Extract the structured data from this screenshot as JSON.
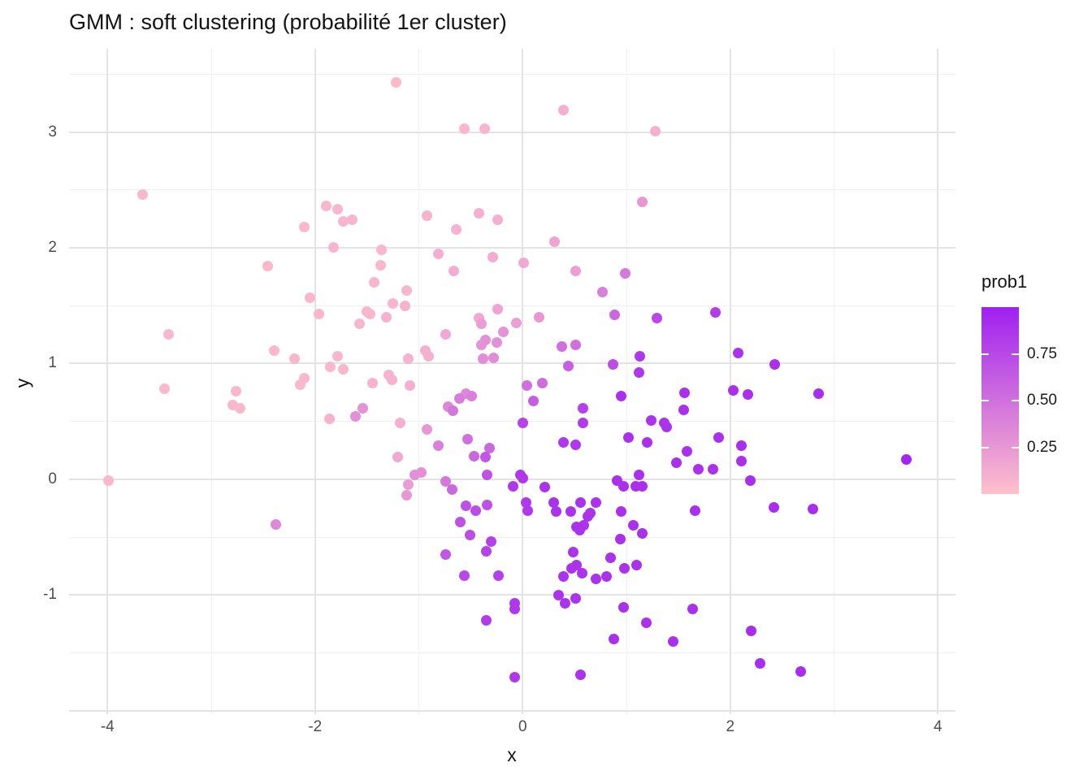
{
  "chart_data": {
    "type": "scatter",
    "title": "GMM : soft clustering (probabilité 1er cluster)",
    "xlabel": "x",
    "ylabel": "y",
    "xlim": [
      -4.37,
      4.17
    ],
    "ylim": [
      -2.03,
      3.72
    ],
    "grid": true,
    "x_major_ticks": [
      -4,
      -2,
      0,
      2,
      4
    ],
    "x_tick_labels": [
      "-4",
      "-2",
      "0",
      "2",
      "4"
    ],
    "x_minor_ticks": [
      -3,
      -1,
      1,
      3
    ],
    "y_major_ticks": [
      3,
      2,
      1,
      0,
      -1,
      -2
    ],
    "y_tick_labels": [
      "3",
      "2",
      "1",
      "0",
      "-1",
      ""
    ],
    "y_minor_ticks": [
      3.5,
      2.5,
      1.5,
      0.5,
      -0.5,
      -1.5
    ],
    "legend": {
      "title": "prob1",
      "position": "right",
      "low_color": "#FFC0CB",
      "high_color": "#A020F0",
      "range": [
        0,
        1
      ],
      "tick_values": [
        0.75,
        0.5,
        0.25
      ],
      "tick_labels": [
        "0.75",
        "0.50",
        "0.25"
      ]
    },
    "series_name": "prob1",
    "points": [
      [
        -1.22,
        3.43,
        0.04
      ],
      [
        0.39,
        3.19,
        0.1
      ],
      [
        -0.56,
        3.03,
        0.06
      ],
      [
        -0.37,
        3.03,
        0.07
      ],
      [
        1.28,
        3.01,
        0.1
      ],
      [
        -3.66,
        2.46,
        0.05
      ],
      [
        1.15,
        2.4,
        0.25
      ],
      [
        -1.89,
        2.36,
        0.06
      ],
      [
        -1.78,
        2.33,
        0.06
      ],
      [
        -0.42,
        2.3,
        0.1
      ],
      [
        -0.92,
        2.28,
        0.08
      ],
      [
        -0.24,
        2.24,
        0.1
      ],
      [
        -1.73,
        2.23,
        0.07
      ],
      [
        -1.64,
        2.24,
        0.07
      ],
      [
        -2.1,
        2.18,
        0.05
      ],
      [
        -0.64,
        2.16,
        0.09
      ],
      [
        0.31,
        2.05,
        0.18
      ],
      [
        -1.82,
        2.0,
        0.07
      ],
      [
        -1.36,
        1.98,
        0.06
      ],
      [
        -0.81,
        1.95,
        0.11
      ],
      [
        -0.29,
        1.92,
        0.13
      ],
      [
        0.01,
        1.87,
        0.15
      ],
      [
        -1.37,
        1.85,
        0.06
      ],
      [
        -2.46,
        1.84,
        0.05
      ],
      [
        -0.66,
        1.8,
        0.12
      ],
      [
        0.51,
        1.8,
        0.2
      ],
      [
        0.99,
        1.78,
        0.45
      ],
      [
        -1.43,
        1.7,
        0.07
      ],
      [
        -1.12,
        1.63,
        0.07
      ],
      [
        0.77,
        1.62,
        0.4
      ],
      [
        -2.05,
        1.57,
        0.06
      ],
      [
        -1.25,
        1.52,
        0.07
      ],
      [
        -1.13,
        1.5,
        0.08
      ],
      [
        -0.24,
        1.47,
        0.18
      ],
      [
        -1.5,
        1.45,
        0.07
      ],
      [
        1.86,
        1.44,
        0.82
      ],
      [
        -1.96,
        1.43,
        0.06
      ],
      [
        -1.47,
        1.43,
        0.07
      ],
      [
        0.89,
        1.42,
        0.55
      ],
      [
        -1.31,
        1.4,
        0.08
      ],
      [
        0.16,
        1.4,
        0.25
      ],
      [
        -0.42,
        1.39,
        0.15
      ],
      [
        1.29,
        1.39,
        0.75
      ],
      [
        -0.06,
        1.35,
        0.2
      ],
      [
        -0.4,
        1.34,
        0.22
      ],
      [
        -1.57,
        1.34,
        0.07
      ],
      [
        -0.74,
        1.25,
        0.15
      ],
      [
        -3.41,
        1.25,
        0.05
      ],
      [
        -0.19,
        1.27,
        0.28
      ],
      [
        -0.36,
        1.2,
        0.3
      ],
      [
        -0.25,
        1.18,
        0.3
      ],
      [
        -0.4,
        1.16,
        0.28
      ],
      [
        0.38,
        1.15,
        0.5
      ],
      [
        0.51,
        1.16,
        0.5
      ],
      [
        -0.94,
        1.11,
        0.1
      ],
      [
        -2.39,
        1.11,
        0.05
      ],
      [
        2.08,
        1.09,
        0.88
      ],
      [
        -0.91,
        1.06,
        0.1
      ],
      [
        -1.78,
        1.06,
        0.06
      ],
      [
        1.13,
        1.06,
        0.85
      ],
      [
        -1.1,
        1.04,
        0.09
      ],
      [
        -2.2,
        1.04,
        0.06
      ],
      [
        -0.38,
        1.04,
        0.32
      ],
      [
        -0.28,
        1.05,
        0.32
      ],
      [
        2.43,
        0.99,
        0.9
      ],
      [
        0.87,
        0.99,
        0.72
      ],
      [
        0.44,
        0.98,
        0.6
      ],
      [
        -1.85,
        0.97,
        0.06
      ],
      [
        -1.73,
        0.95,
        0.06
      ],
      [
        1.12,
        0.92,
        0.85
      ],
      [
        -1.29,
        0.9,
        0.08
      ],
      [
        -2.1,
        0.87,
        0.05
      ],
      [
        -1.26,
        0.86,
        0.08
      ],
      [
        -1.45,
        0.83,
        0.08
      ],
      [
        0.19,
        0.83,
        0.52
      ],
      [
        -2.14,
        0.82,
        0.05
      ],
      [
        -1.09,
        0.81,
        0.1
      ],
      [
        0.04,
        0.81,
        0.5
      ],
      [
        -3.45,
        0.78,
        0.04
      ],
      [
        -2.76,
        0.76,
        0.05
      ],
      [
        2.03,
        0.77,
        0.9
      ],
      [
        1.56,
        0.75,
        0.9
      ],
      [
        -0.55,
        0.74,
        0.35
      ],
      [
        2.85,
        0.74,
        0.92
      ],
      [
        2.17,
        0.73,
        0.9
      ],
      [
        -0.49,
        0.72,
        0.4
      ],
      [
        0.95,
        0.72,
        0.9
      ],
      [
        -0.61,
        0.7,
        0.42
      ],
      [
        0.1,
        0.68,
        0.62
      ],
      [
        -2.79,
        0.64,
        0.05
      ],
      [
        -0.72,
        0.63,
        0.35
      ],
      [
        -2.72,
        0.61,
        0.05
      ],
      [
        -1.54,
        0.61,
        0.28
      ],
      [
        0.58,
        0.61,
        0.8
      ],
      [
        1.55,
        0.6,
        0.9
      ],
      [
        -0.67,
        0.59,
        0.45
      ],
      [
        -1.61,
        0.54,
        0.3
      ],
      [
        -1.86,
        0.52,
        0.08
      ],
      [
        -1.18,
        0.49,
        0.1
      ],
      [
        0.58,
        0.49,
        0.82
      ],
      [
        1.24,
        0.51,
        0.88
      ],
      [
        1.36,
        0.49,
        0.88
      ],
      [
        1.39,
        0.45,
        0.88
      ],
      [
        0.0,
        0.49,
        0.78
      ],
      [
        -0.92,
        0.43,
        0.25
      ],
      [
        1.89,
        0.36,
        0.9
      ],
      [
        1.02,
        0.36,
        0.9
      ],
      [
        -0.53,
        0.35,
        0.5
      ],
      [
        0.39,
        0.32,
        0.85
      ],
      [
        1.2,
        0.32,
        0.9
      ],
      [
        0.51,
        0.3,
        0.85
      ],
      [
        -0.81,
        0.29,
        0.4
      ],
      [
        2.11,
        0.29,
        0.92
      ],
      [
        -0.32,
        0.27,
        0.55
      ],
      [
        1.58,
        0.24,
        0.9
      ],
      [
        -0.47,
        0.2,
        0.55
      ],
      [
        -0.36,
        0.19,
        0.65
      ],
      [
        -1.2,
        0.19,
        0.15
      ],
      [
        3.7,
        0.17,
        0.97
      ],
      [
        2.11,
        0.16,
        0.9
      ],
      [
        1.48,
        0.14,
        0.9
      ],
      [
        1.69,
        0.09,
        0.9
      ],
      [
        1.83,
        0.09,
        0.9
      ],
      [
        -1.04,
        0.04,
        0.3
      ],
      [
        -0.98,
        0.06,
        0.3
      ],
      [
        -0.34,
        0.04,
        0.68
      ],
      [
        -0.02,
        0.04,
        0.85
      ],
      [
        0.0,
        0.01,
        0.85
      ],
      [
        1.12,
        0.04,
        0.9
      ],
      [
        -3.99,
        -0.01,
        0.06
      ],
      [
        -0.74,
        -0.02,
        0.45
      ],
      [
        0.91,
        -0.01,
        0.9
      ],
      [
        2.19,
        -0.01,
        0.92
      ],
      [
        -1.1,
        -0.05,
        0.22
      ],
      [
        -0.09,
        -0.06,
        0.85
      ],
      [
        0.21,
        -0.07,
        0.88
      ],
      [
        0.97,
        -0.06,
        0.9
      ],
      [
        1.09,
        -0.06,
        0.9
      ],
      [
        1.15,
        -0.06,
        0.9
      ],
      [
        -0.68,
        -0.09,
        0.55
      ],
      [
        -1.12,
        -0.14,
        0.25
      ],
      [
        0.03,
        -0.2,
        0.85
      ],
      [
        0.3,
        -0.2,
        0.88
      ],
      [
        0.56,
        -0.2,
        0.88
      ],
      [
        0.71,
        -0.2,
        0.88
      ],
      [
        -0.34,
        -0.22,
        0.7
      ],
      [
        -0.55,
        -0.23,
        0.7
      ],
      [
        0.05,
        -0.27,
        0.85
      ],
      [
        -0.45,
        -0.27,
        0.72
      ],
      [
        0.32,
        -0.28,
        0.88
      ],
      [
        0.46,
        -0.28,
        0.88
      ],
      [
        0.65,
        -0.29,
        0.88
      ],
      [
        0.95,
        -0.28,
        0.9
      ],
      [
        1.66,
        -0.27,
        0.9
      ],
      [
        2.42,
        -0.24,
        0.92
      ],
      [
        2.8,
        -0.26,
        0.92
      ],
      [
        0.63,
        -0.32,
        0.88
      ],
      [
        -0.6,
        -0.37,
        0.7
      ],
      [
        -2.38,
        -0.39,
        0.35
      ],
      [
        0.59,
        -0.4,
        0.88
      ],
      [
        0.52,
        -0.41,
        0.88
      ],
      [
        0.55,
        -0.44,
        0.88
      ],
      [
        1.07,
        -0.4,
        0.9
      ],
      [
        1.15,
        -0.47,
        0.9
      ],
      [
        -0.51,
        -0.48,
        0.72
      ],
      [
        0.94,
        -0.52,
        0.9
      ],
      [
        -0.3,
        -0.54,
        0.78
      ],
      [
        -0.35,
        -0.62,
        0.78
      ],
      [
        0.49,
        -0.63,
        0.88
      ],
      [
        -0.74,
        -0.65,
        0.65
      ],
      [
        0.85,
        -0.68,
        0.88
      ],
      [
        0.52,
        -0.74,
        0.88
      ],
      [
        1.1,
        -0.74,
        0.9
      ],
      [
        0.47,
        -0.77,
        0.88
      ],
      [
        0.98,
        -0.77,
        0.9
      ],
      [
        0.57,
        -0.81,
        0.88
      ],
      [
        0.39,
        -0.84,
        0.88
      ],
      [
        -0.56,
        -0.83,
        0.75
      ],
      [
        -0.23,
        -0.83,
        0.8
      ],
      [
        0.71,
        -0.86,
        0.88
      ],
      [
        0.81,
        -0.84,
        0.88
      ],
      [
        0.35,
        -1.0,
        0.88
      ],
      [
        0.51,
        -1.03,
        0.88
      ],
      [
        0.41,
        -1.07,
        0.88
      ],
      [
        -0.08,
        -1.07,
        0.85
      ],
      [
        -0.08,
        -1.12,
        0.85
      ],
      [
        0.97,
        -1.11,
        0.9
      ],
      [
        1.64,
        -1.12,
        0.9
      ],
      [
        -0.35,
        -1.22,
        0.82
      ],
      [
        1.19,
        -1.24,
        0.9
      ],
      [
        2.2,
        -1.31,
        0.92
      ],
      [
        0.88,
        -1.38,
        0.9
      ],
      [
        1.45,
        -1.4,
        0.9
      ],
      [
        2.29,
        -1.59,
        0.92
      ],
      [
        2.68,
        -1.66,
        0.92
      ],
      [
        -0.08,
        -1.71,
        0.85
      ],
      [
        0.56,
        -1.69,
        0.88
      ]
    ]
  },
  "colors": {
    "background": "#ffffff",
    "grid_major": "#e3e3e3",
    "grid_minor": "#f0f0f0",
    "tick_label": "#4d4d4d",
    "text": "#141414"
  }
}
